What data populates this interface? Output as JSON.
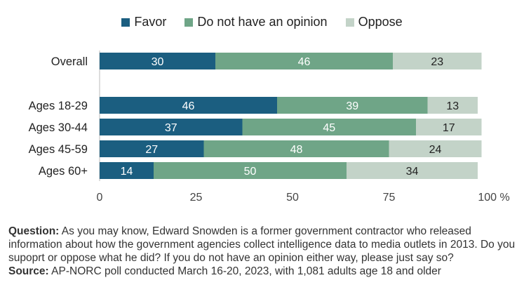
{
  "chart_data": {
    "type": "bar",
    "orientation": "horizontal",
    "stacked": true,
    "categories": [
      "Overall",
      "Ages 18-29",
      "Ages 30-44",
      "Ages 45-59",
      "Ages 60+"
    ],
    "series": [
      {
        "name": "Favor",
        "values": [
          30,
          46,
          37,
          27,
          14
        ],
        "color": "#1b5e80"
      },
      {
        "name": "Do not have an opinion",
        "values": [
          46,
          39,
          45,
          48,
          50
        ],
        "color": "#6fa587"
      },
      {
        "name": "Oppose",
        "values": [
          23,
          13,
          17,
          24,
          34
        ],
        "color": "#c3d3c8"
      }
    ],
    "label_colors": [
      "#ffffff",
      "#ffffff",
      "#222222"
    ],
    "xlim": [
      0,
      100
    ],
    "xticks": [
      "0",
      "25",
      "50",
      "75",
      "100 %"
    ],
    "legend_position": "top"
  },
  "notes": {
    "question_label": "Question:",
    "question_text": "As you may know, Edward Snowden is a former government contractor who released information about how the government agencies collect intelligence data to media outlets in 2013. Do you supoprt or oppose what he did? If you do not have an opinion either way, please just say so?",
    "source_label": "Source:",
    "source_text": "AP-NORC poll conducted March 16-20, 2023, with 1,081 adults age 18 and older"
  }
}
